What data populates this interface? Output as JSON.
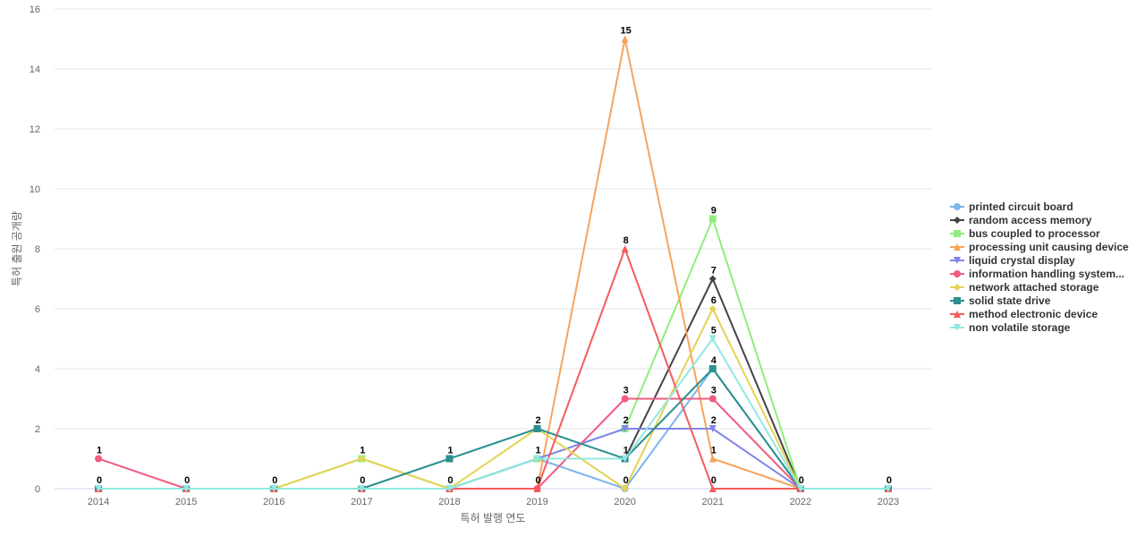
{
  "chart_data": {
    "type": "line",
    "xlabel": "특허 발행 연도",
    "ylabel": "특허 출원 공개량",
    "ylim": [
      0,
      16
    ],
    "ytick_step": 2,
    "grid": true,
    "legend_position": "right",
    "categories": [
      "2014",
      "2015",
      "2016",
      "2017",
      "2018",
      "2019",
      "2020",
      "2021",
      "2022",
      "2023"
    ],
    "series": [
      {
        "name": "printed circuit board",
        "color": "#7cb5ec",
        "marker": "circle",
        "values": [
          0,
          0,
          0,
          0,
          0,
          1,
          0,
          4,
          0,
          0
        ]
      },
      {
        "name": "random access memory",
        "color": "#434348",
        "marker": "diamond",
        "values": [
          0,
          0,
          0,
          0,
          0,
          1,
          1,
          7,
          0,
          0
        ]
      },
      {
        "name": "bus coupled to processor",
        "color": "#90ed7d",
        "marker": "square",
        "values": [
          0,
          0,
          0,
          1,
          0,
          1,
          2,
          9,
          0,
          0
        ]
      },
      {
        "name": "processing unit causing device",
        "color": "#f7a35c",
        "marker": "triangle",
        "values": [
          0,
          0,
          0,
          0,
          0,
          0,
          15,
          1,
          0,
          0
        ]
      },
      {
        "name": "liquid crystal display",
        "color": "#8085e9",
        "marker": "triangle-down",
        "values": [
          0,
          0,
          0,
          0,
          0,
          1,
          2,
          2,
          0,
          0
        ]
      },
      {
        "name": "information handling system...",
        "color": "#f15c80",
        "marker": "circle",
        "values": [
          1,
          0,
          0,
          0,
          0,
          0,
          3,
          3,
          0,
          0
        ]
      },
      {
        "name": "network attached storage",
        "color": "#e4d354",
        "marker": "diamond",
        "values": [
          0,
          0,
          0,
          1,
          0,
          2,
          0,
          6,
          0,
          0
        ]
      },
      {
        "name": "solid state drive",
        "color": "#2b908f",
        "marker": "square",
        "values": [
          0,
          0,
          0,
          0,
          1,
          2,
          1,
          4,
          0,
          0
        ]
      },
      {
        "name": "method electronic device",
        "color": "#f45b5b",
        "marker": "triangle",
        "values": [
          0,
          0,
          0,
          0,
          0,
          0,
          8,
          0,
          0,
          0
        ]
      },
      {
        "name": "non volatile storage",
        "color": "#91e8e1",
        "marker": "triangle-down",
        "values": [
          0,
          0,
          0,
          0,
          0,
          1,
          1,
          5,
          0,
          0
        ]
      }
    ],
    "data_labels": [
      {
        "x": "2014",
        "text": "1",
        "value": 1
      },
      {
        "x": "2014",
        "text": "0",
        "value": 0
      },
      {
        "x": "2015",
        "text": "0",
        "value": 0
      },
      {
        "x": "2016",
        "text": "0",
        "value": 0
      },
      {
        "x": "2017",
        "text": "1",
        "value": 1
      },
      {
        "x": "2017",
        "text": "0",
        "value": 0
      },
      {
        "x": "2018",
        "text": "1",
        "value": 1
      },
      {
        "x": "2018",
        "text": "0",
        "value": 0
      },
      {
        "x": "2019",
        "text": "2",
        "value": 2
      },
      {
        "x": "2019",
        "text": "1",
        "value": 1
      },
      {
        "x": "2019",
        "text": "0",
        "value": 0
      },
      {
        "x": "2020",
        "text": "15",
        "value": 15
      },
      {
        "x": "2020",
        "text": "8",
        "value": 8
      },
      {
        "x": "2020",
        "text": "3",
        "value": 3
      },
      {
        "x": "2020",
        "text": "2",
        "value": 2
      },
      {
        "x": "2020",
        "text": "1",
        "value": 1
      },
      {
        "x": "2020",
        "text": "0",
        "value": 0
      },
      {
        "x": "2021",
        "text": "9",
        "value": 9
      },
      {
        "x": "2021",
        "text": "7",
        "value": 7
      },
      {
        "x": "2021",
        "text": "6",
        "value": 6
      },
      {
        "x": "2021",
        "text": "5",
        "value": 5
      },
      {
        "x": "2021",
        "text": "4",
        "value": 4
      },
      {
        "x": "2021",
        "text": "3",
        "value": 3
      },
      {
        "x": "2021",
        "text": "2",
        "value": 2
      },
      {
        "x": "2021",
        "text": "1",
        "value": 1
      },
      {
        "x": "2021",
        "text": "0",
        "value": 0
      },
      {
        "x": "2022",
        "text": "0",
        "value": 0
      },
      {
        "x": "2023",
        "text": "0",
        "value": 0
      }
    ]
  }
}
